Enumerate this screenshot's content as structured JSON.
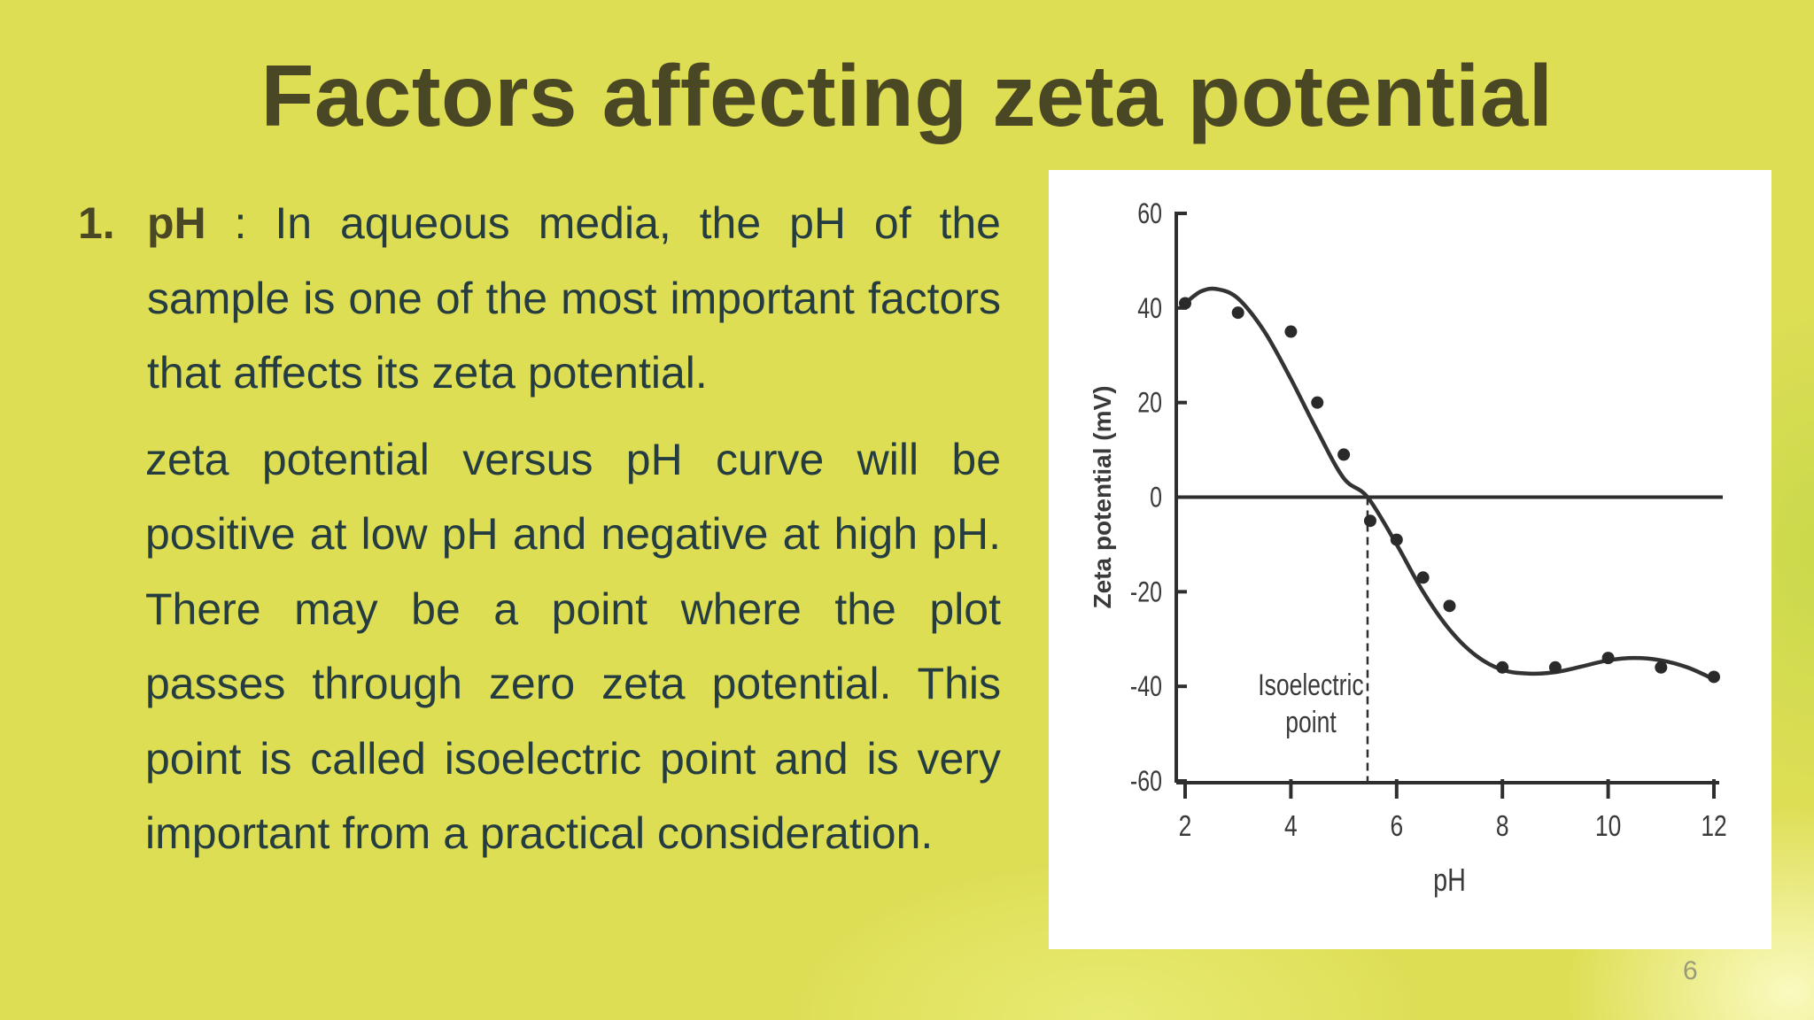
{
  "slide": {
    "title": "Factors affecting zeta potential",
    "page_number": "6"
  },
  "content": {
    "item_number": "1.",
    "keyword": "pH",
    "paragraph1_rest": " : In aqueous media, the pH of the sample is one of the most important factors that affects its zeta potential.",
    "paragraph2": "zeta potential versus pH curve will be positive at low pH and  negative at high pH. There may be a point where the plot passes through zero zeta potential. This point is called isoelectric point and is very important from a practical consideration."
  },
  "chart_data": {
    "type": "scatter",
    "xlabel": "pH",
    "ylabel": "Zeta potential (mV)",
    "xlim": [
      2,
      12
    ],
    "ylim": [
      -60,
      60
    ],
    "x_ticks": [
      2,
      4,
      6,
      8,
      10,
      12
    ],
    "y_ticks": [
      60,
      40,
      20,
      0,
      -20,
      -40,
      -60
    ],
    "series": [
      {
        "x": [
          2.0,
          3.0,
          4.0,
          4.5,
          5.0,
          5.5,
          6.0,
          6.5,
          7.0,
          8.0,
          9.0,
          10.0,
          11.0,
          12.0
        ],
        "y": [
          41,
          39,
          35,
          20,
          9,
          -5,
          -9,
          -17,
          -23,
          -36,
          -36,
          -34,
          -36,
          -38
        ]
      }
    ],
    "fit_curve": {
      "x": [
        2.0,
        2.3,
        2.6,
        3.0,
        3.5,
        4.0,
        4.5,
        5.0,
        5.45,
        6.0,
        6.5,
        7.0,
        7.5,
        8.0,
        8.5,
        9.0,
        9.5,
        10.0,
        10.5,
        11.0,
        11.5,
        12.0
      ],
      "y": [
        41,
        43.5,
        44,
        42,
        35,
        25,
        14,
        4,
        0,
        -10,
        -20,
        -28,
        -33.5,
        -36.5,
        -37.3,
        -37,
        -35.8,
        -34.5,
        -34,
        -34.5,
        -36,
        -38.5
      ]
    },
    "annotation": {
      "text_line1": "Isoelectric",
      "text_line2": "point",
      "x": 5.45
    },
    "reference_line_y": 0,
    "grid": false,
    "colors": {
      "curve": "#333333",
      "points": "#2a2a2a",
      "axis": "#2e2e2e"
    }
  }
}
